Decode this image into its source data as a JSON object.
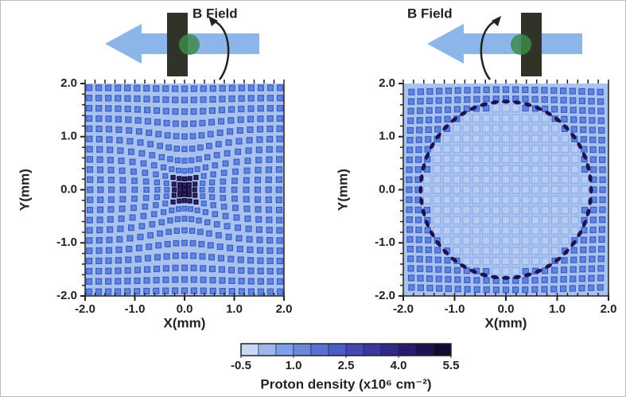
{
  "panels": [
    {
      "annotation": "B Field",
      "x_label": "X(mm)",
      "y_label": "Y(mm)",
      "xlim": [
        -2.0,
        2.0
      ],
      "ylim": [
        -2.0,
        2.0
      ],
      "xticks": [
        {
          "value": -2.0,
          "label": "-2.0"
        },
        {
          "value": -1.0,
          "label": "-1.0"
        },
        {
          "value": 0.0,
          "label": "0.0"
        },
        {
          "value": 1.0,
          "label": "1.0"
        },
        {
          "value": 2.0,
          "label": "2.0"
        }
      ],
      "yticks": [
        {
          "value": -2.0,
          "label": "-2.0"
        },
        {
          "value": -1.0,
          "label": "-1.0"
        },
        {
          "value": 0.0,
          "label": "0.0"
        },
        {
          "value": 1.0,
          "label": "1.0"
        },
        {
          "value": 2.0,
          "label": "2.0"
        }
      ]
    },
    {
      "annotation": "B Field",
      "x_label": "X(mm)",
      "y_label": "Y(mm)",
      "xlim": [
        -2.0,
        2.0
      ],
      "ylim": [
        -2.0,
        2.0
      ],
      "xticks": [
        {
          "value": -2.0,
          "label": "-2.0"
        },
        {
          "value": -1.0,
          "label": "-1.0"
        },
        {
          "value": 0.0,
          "label": "0.0"
        },
        {
          "value": 1.0,
          "label": "1.0"
        },
        {
          "value": 2.0,
          "label": "2.0"
        }
      ],
      "yticks": [
        {
          "value": -2.0,
          "label": "-2.0"
        },
        {
          "value": -1.0,
          "label": "-1.0"
        },
        {
          "value": 0.0,
          "label": "0.0"
        },
        {
          "value": 1.0,
          "label": "1.0"
        },
        {
          "value": 2.0,
          "label": "2.0"
        }
      ]
    }
  ],
  "colorbar": {
    "label": "Proton density (x10⁶ cm⁻²)",
    "lim": [
      -0.5,
      5.5
    ],
    "ticks": [
      -0.5,
      {
        "value": 1.0,
        "label": "1.0"
      },
      {
        "value": 2.5,
        "label": "2.5"
      },
      {
        "value": 4.0,
        "label": "4.0"
      },
      5.5
    ],
    "colors": [
      "#c8d8f4",
      "#9cb8ec",
      "#7ea0e6",
      "#6a88dc",
      "#5a70d6",
      "#4d5ccc",
      "#4646b8",
      "#3c36a0",
      "#322888",
      "#281c6c",
      "#1e1250",
      "#140a30"
    ]
  }
}
